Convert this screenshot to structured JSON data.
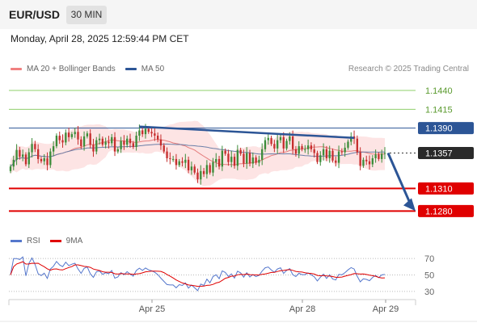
{
  "header": {
    "symbol": "EUR/USD",
    "timeframe": "30 MIN"
  },
  "datetime": "Monday, April 28, 2025 12:59:44 PM CET",
  "legend": [
    {
      "label": "MA 20 + Bollinger Bands",
      "color": "#f08080"
    },
    {
      "label": "MA 50",
      "color": "#2c5596"
    }
  ],
  "research": "Research © 2025 Trading Central",
  "colors": {
    "bollinger_fill": "#fde4e4",
    "ma20": "#e47c7c",
    "ma50": "#6b7fa8",
    "candle_up": "#3c8c3a",
    "candle_down": "#c62e2e",
    "resistance_green": "#8fcf6b",
    "pivot_blue": "#2c5596",
    "support_red": "#e00000",
    "trendline": "#2c5596"
  },
  "chart_data": {
    "type": "candlestick",
    "instrument": "EUR/USD",
    "interval": "30 MIN",
    "price_range": [
      1.126,
      1.1455
    ],
    "x_ticks": [
      "Apr 25",
      "Apr 28",
      "Apr 29"
    ],
    "levels": [
      {
        "value": 1.144,
        "label": "1.1440",
        "kind": "resistance"
      },
      {
        "value": 1.1415,
        "label": "1.1415",
        "kind": "resistance"
      },
      {
        "value": 1.139,
        "label": "1.1390",
        "kind": "pivot"
      },
      {
        "value": 1.1357,
        "label": "1.1357",
        "kind": "last"
      },
      {
        "value": 1.131,
        "label": "1.1310",
        "kind": "support"
      },
      {
        "value": 1.128,
        "label": "1.1280",
        "kind": "support"
      }
    ],
    "closes": [
      1.1339,
      1.1348,
      1.1361,
      1.1352,
      1.1355,
      1.1342,
      1.1358,
      1.1369,
      1.1362,
      1.1349,
      1.1346,
      1.135,
      1.1341,
      1.1359,
      1.1366,
      1.138,
      1.1374,
      1.1371,
      1.1384,
      1.1378,
      1.1382,
      1.1385,
      1.1375,
      1.1366,
      1.1379,
      1.1383,
      1.1368,
      1.1359,
      1.1374,
      1.1376,
      1.1368,
      1.1372,
      1.137,
      1.1378,
      1.1359,
      1.1362,
      1.1373,
      1.1368,
      1.1376,
      1.137,
      1.1365,
      1.138,
      1.1387,
      1.1382,
      1.1389,
      1.1385,
      1.1383,
      1.138,
      1.1375,
      1.1367,
      1.1359,
      1.135,
      1.1349,
      1.1349,
      1.1341,
      1.1346,
      1.1344,
      1.1348,
      1.1334,
      1.1339,
      1.1331,
      1.1322,
      1.1333,
      1.1329,
      1.1341,
      1.1331,
      1.1345,
      1.1349,
      1.1339,
      1.136,
      1.1356,
      1.1345,
      1.1352,
      1.134,
      1.1361,
      1.1356,
      1.1343,
      1.1357,
      1.1343,
      1.1351,
      1.1344,
      1.1348,
      1.1362,
      1.1374,
      1.1377,
      1.1369,
      1.1363,
      1.1374,
      1.1378,
      1.1363,
      1.1373,
      1.1379,
      1.1362,
      1.1356,
      1.1366,
      1.1362,
      1.1362,
      1.1367,
      1.1362,
      1.1357,
      1.1345,
      1.1354,
      1.1362,
      1.135,
      1.136,
      1.1347,
      1.1344,
      1.1359,
      1.1358,
      1.1364,
      1.1372,
      1.1379,
      1.1376,
      1.1358,
      1.134,
      1.1348,
      1.1346,
      1.1342,
      1.135,
      1.1355,
      1.1349,
      1.1356,
      1.1357
    ],
    "trendline": {
      "from": {
        "index": 42,
        "price": 1.1392
      },
      "to": {
        "index": 112,
        "price": 1.1377
      }
    },
    "projection": {
      "from_price": 1.1357,
      "to_price": 1.128
    }
  },
  "rsi": {
    "legend": [
      {
        "label": "RSI",
        "color": "#5577cc"
      },
      {
        "label": "9MA",
        "color": "#e00000"
      }
    ],
    "levels": [
      {
        "value": 70,
        "label": "70"
      },
      {
        "value": 50,
        "label": "50"
      },
      {
        "value": 30,
        "label": "30"
      }
    ],
    "range": [
      25,
      78
    ]
  }
}
